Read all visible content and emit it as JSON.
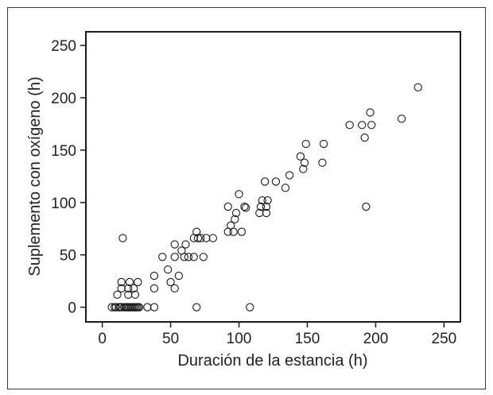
{
  "chart_data": {
    "type": "scatter",
    "title": "",
    "xlabel": "Duración de la estancia (h)",
    "ylabel": "Suplemento con oxígeno (h)",
    "xlim": [
      -12,
      262
    ],
    "ylim": [
      -14,
      263
    ],
    "xticks": [
      0,
      50,
      100,
      150,
      200,
      250
    ],
    "yticks": [
      0,
      50,
      100,
      150,
      200,
      250
    ],
    "grid": false,
    "legend": "none",
    "marker": "open-circle",
    "colors": {
      "marker_stroke": "#1a1a1a",
      "axis": "#1a1a1a",
      "text": "#222222"
    },
    "points": [
      {
        "x": 7,
        "y": 0
      },
      {
        "x": 9,
        "y": 0
      },
      {
        "x": 10,
        "y": 0
      },
      {
        "x": 12,
        "y": 0
      },
      {
        "x": 13,
        "y": 0
      },
      {
        "x": 14,
        "y": 0
      },
      {
        "x": 16,
        "y": 0
      },
      {
        "x": 17,
        "y": 0
      },
      {
        "x": 18,
        "y": 0
      },
      {
        "x": 19,
        "y": 0
      },
      {
        "x": 20,
        "y": 0
      },
      {
        "x": 21,
        "y": 0
      },
      {
        "x": 22,
        "y": 0
      },
      {
        "x": 23,
        "y": 0
      },
      {
        "x": 24,
        "y": 0
      },
      {
        "x": 25,
        "y": 0
      },
      {
        "x": 26,
        "y": 0
      },
      {
        "x": 27,
        "y": 0
      },
      {
        "x": 33,
        "y": 0
      },
      {
        "x": 38,
        "y": 0
      },
      {
        "x": 69,
        "y": 0
      },
      {
        "x": 108,
        "y": 0
      },
      {
        "x": 11,
        "y": 12
      },
      {
        "x": 19,
        "y": 12
      },
      {
        "x": 24,
        "y": 12
      },
      {
        "x": 14,
        "y": 18
      },
      {
        "x": 19,
        "y": 18
      },
      {
        "x": 23,
        "y": 18
      },
      {
        "x": 14,
        "y": 24
      },
      {
        "x": 20,
        "y": 24
      },
      {
        "x": 26,
        "y": 24
      },
      {
        "x": 15,
        "y": 66
      },
      {
        "x": 38,
        "y": 18
      },
      {
        "x": 38,
        "y": 30
      },
      {
        "x": 44,
        "y": 48
      },
      {
        "x": 48,
        "y": 36
      },
      {
        "x": 50,
        "y": 24
      },
      {
        "x": 53,
        "y": 18
      },
      {
        "x": 53,
        "y": 48
      },
      {
        "x": 53,
        "y": 60
      },
      {
        "x": 56,
        "y": 30
      },
      {
        "x": 58,
        "y": 54
      },
      {
        "x": 60,
        "y": 48
      },
      {
        "x": 61,
        "y": 60
      },
      {
        "x": 63,
        "y": 48
      },
      {
        "x": 67,
        "y": 48
      },
      {
        "x": 67,
        "y": 66
      },
      {
        "x": 69,
        "y": 72
      },
      {
        "x": 70,
        "y": 66
      },
      {
        "x": 72,
        "y": 66
      },
      {
        "x": 74,
        "y": 48
      },
      {
        "x": 76,
        "y": 66
      },
      {
        "x": 81,
        "y": 66
      },
      {
        "x": 92,
        "y": 72
      },
      {
        "x": 92,
        "y": 96
      },
      {
        "x": 94,
        "y": 78
      },
      {
        "x": 96,
        "y": 72
      },
      {
        "x": 97,
        "y": 84
      },
      {
        "x": 98,
        "y": 90
      },
      {
        "x": 100,
        "y": 108
      },
      {
        "x": 102,
        "y": 72
      },
      {
        "x": 104,
        "y": 96
      },
      {
        "x": 105,
        "y": 95
      },
      {
        "x": 115,
        "y": 90
      },
      {
        "x": 116,
        "y": 96
      },
      {
        "x": 117,
        "y": 102
      },
      {
        "x": 119,
        "y": 120
      },
      {
        "x": 120,
        "y": 90
      },
      {
        "x": 120,
        "y": 96
      },
      {
        "x": 121,
        "y": 102
      },
      {
        "x": 127,
        "y": 120
      },
      {
        "x": 134,
        "y": 114
      },
      {
        "x": 137,
        "y": 126
      },
      {
        "x": 145,
        "y": 144
      },
      {
        "x": 147,
        "y": 132
      },
      {
        "x": 148,
        "y": 138
      },
      {
        "x": 149,
        "y": 156
      },
      {
        "x": 161,
        "y": 138
      },
      {
        "x": 162,
        "y": 156
      },
      {
        "x": 181,
        "y": 174
      },
      {
        "x": 190,
        "y": 174
      },
      {
        "x": 192,
        "y": 162
      },
      {
        "x": 193,
        "y": 96
      },
      {
        "x": 196,
        "y": 186
      },
      {
        "x": 197,
        "y": 174
      },
      {
        "x": 219,
        "y": 180
      },
      {
        "x": 231,
        "y": 210
      }
    ]
  }
}
